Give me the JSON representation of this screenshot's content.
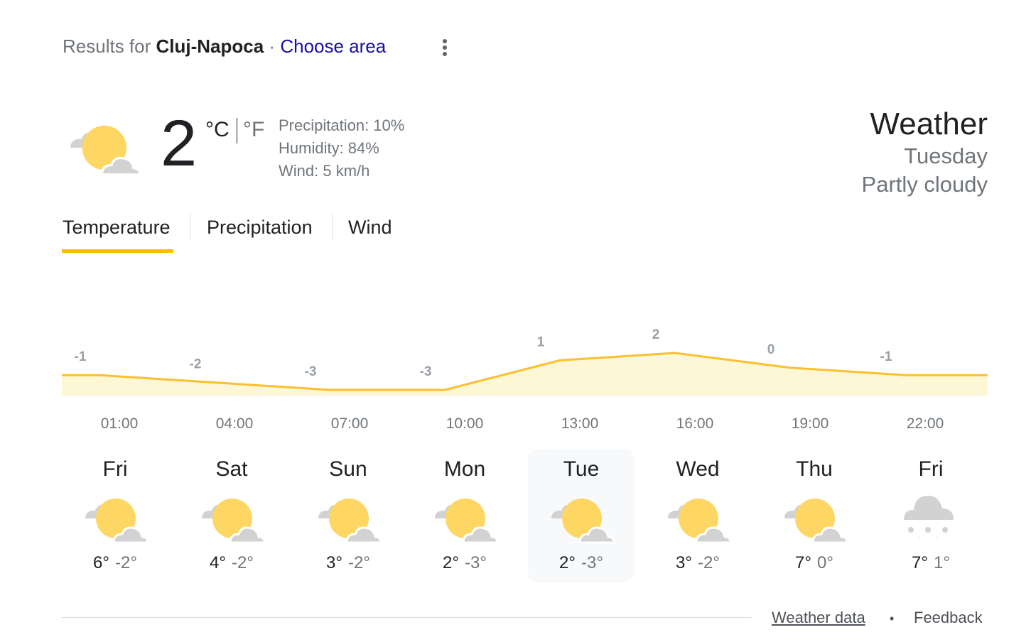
{
  "header": {
    "prefix": "Results for",
    "location": "Cluj-Napoca",
    "separator": "·",
    "link": "Choose area"
  },
  "current": {
    "temperature": 2,
    "unit_c": "°C",
    "unit_f": "°F",
    "precipitation": "Precipitation: 10%",
    "humidity": "Humidity: 84%",
    "wind": "Wind: 5 km/h"
  },
  "summary": {
    "title": "Weather",
    "day": "Tuesday",
    "condition": "Partly cloudy"
  },
  "tabs": [
    "Temperature",
    "Precipitation",
    "Wind"
  ],
  "hourly": {
    "times": [
      "01:00",
      "04:00",
      "07:00",
      "10:00",
      "13:00",
      "16:00",
      "19:00",
      "22:00"
    ],
    "values": [
      -1,
      -2,
      -3,
      -3,
      1,
      2,
      0,
      -1
    ]
  },
  "days": [
    {
      "name": "Fri",
      "high": "6°",
      "low": "-2°"
    },
    {
      "name": "Sat",
      "high": "4°",
      "low": "-2°"
    },
    {
      "name": "Sun",
      "high": "3°",
      "low": "-2°"
    },
    {
      "name": "Mon",
      "high": "2°",
      "low": "-3°"
    },
    {
      "name": "Tue",
      "high": "2°",
      "low": "-3°"
    },
    {
      "name": "Wed",
      "high": "3°",
      "low": "-2°"
    },
    {
      "name": "Thu",
      "high": "7°",
      "low": "0°"
    },
    {
      "name": "Fri",
      "high": "7°",
      "low": "1°"
    }
  ],
  "footer": {
    "source": "Weather data",
    "bullet": "•",
    "feedback": "Feedback"
  }
}
